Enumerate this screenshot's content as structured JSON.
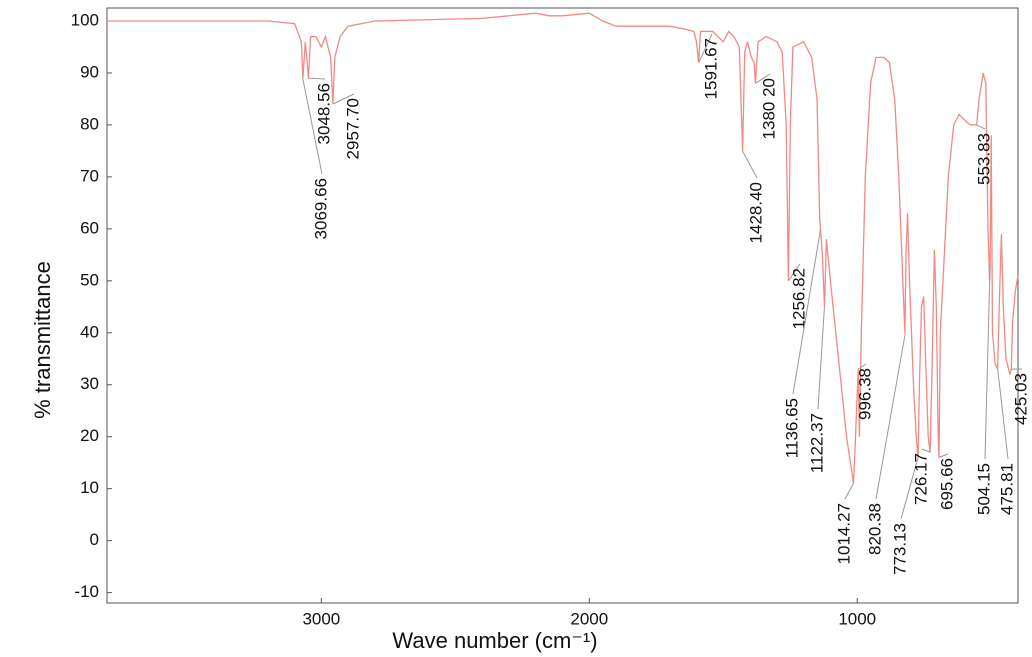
{
  "chart_data": {
    "type": "line",
    "xlabel": "Wave number (cm⁻¹)",
    "ylabel": "% transmittance",
    "color": "#f08a84",
    "xlim": [
      3800,
      400
    ],
    "xticks": [
      3000,
      2000,
      1000
    ],
    "ylim": [
      -12,
      102.5
    ],
    "yticks": [
      100,
      90,
      80,
      70,
      60,
      50,
      40,
      30,
      20,
      10,
      0,
      -10
    ],
    "x": [
      3800,
      3400,
      3200,
      3100,
      3075,
      3069,
      3060,
      3048,
      3040,
      3020,
      3000,
      2985,
      2965,
      2957,
      2950,
      2930,
      2900,
      2800,
      2400,
      2200,
      2150,
      2100,
      2000,
      1950,
      1900,
      1850,
      1800,
      1700,
      1650,
      1610,
      1600,
      1592,
      1585,
      1540,
      1500,
      1480,
      1460,
      1440,
      1428,
      1420,
      1410,
      1395,
      1385,
      1380,
      1370,
      1340,
      1300,
      1280,
      1265,
      1257,
      1250,
      1240,
      1200,
      1170,
      1150,
      1140,
      1137,
      1130,
      1122,
      1115,
      1100,
      1080,
      1060,
      1040,
      1025,
      1014,
      1008,
      1000,
      996,
      992,
      985,
      970,
      950,
      930,
      900,
      880,
      860,
      845,
      830,
      822,
      818,
      812,
      805,
      790,
      780,
      773,
      768,
      760,
      752,
      745,
      735,
      728,
      722,
      712,
      705,
      698,
      695,
      690,
      680,
      660,
      640,
      620,
      600,
      580,
      560,
      554,
      545,
      530,
      520,
      512,
      506,
      504,
      500,
      495,
      485,
      476,
      470,
      462,
      455,
      445,
      430,
      425,
      420,
      410,
      400
    ],
    "values": [
      100,
      100,
      100,
      99.5,
      96,
      89,
      96,
      89,
      97,
      97,
      95,
      97,
      93,
      84,
      93,
      97,
      99,
      100,
      100.5,
      101.5,
      101,
      101,
      101.5,
      100,
      99,
      99,
      99,
      99,
      98.5,
      98,
      96,
      92,
      98,
      98,
      96,
      98,
      97,
      95,
      75,
      94,
      96,
      93,
      92,
      88,
      96,
      97,
      96,
      94,
      80,
      50,
      80,
      95,
      96,
      93,
      85,
      62,
      60,
      55,
      45,
      58,
      50,
      40,
      30,
      20,
      15,
      11,
      18,
      28,
      33,
      20,
      40,
      70,
      88,
      93,
      93,
      92,
      85,
      70,
      50,
      40,
      55,
      63,
      50,
      30,
      20,
      16,
      30,
      45,
      47,
      35,
      20,
      17,
      30,
      56,
      45,
      20,
      16,
      40,
      50,
      70,
      80,
      82,
      81,
      80,
      80,
      80,
      85,
      90,
      88,
      60,
      50,
      53,
      78,
      40,
      34,
      33,
      45,
      59,
      45,
      35,
      32,
      33,
      42,
      48,
      51
    ],
    "peaks": [
      {
        "x": 3069.66,
        "y": 89,
        "label": "3069.66"
      },
      {
        "x": 3048.56,
        "y": 89,
        "label": "3048.56"
      },
      {
        "x": 2957.7,
        "y": 84,
        "label": "2957.70"
      },
      {
        "x": 1591.67,
        "y": 92,
        "label": "1591.67"
      },
      {
        "x": 1428.4,
        "y": 75,
        "label": "1428.40"
      },
      {
        "x": 1380.2,
        "y": 88,
        "label": "1380 20"
      },
      {
        "x": 1256.82,
        "y": 50,
        "label": "1256.82"
      },
      {
        "x": 1136.65,
        "y": 60,
        "label": "1136.65"
      },
      {
        "x": 1122.37,
        "y": 45,
        "label": "1122.37"
      },
      {
        "x": 1014.27,
        "y": 11,
        "label": "1014.27"
      },
      {
        "x": 996.38,
        "y": 33,
        "label": "996.38"
      },
      {
        "x": 820.38,
        "y": 40,
        "label": "820.38"
      },
      {
        "x": 773.13,
        "y": 16,
        "label": "773.13"
      },
      {
        "x": 726.17,
        "y": 17,
        "label": "726.17"
      },
      {
        "x": 695.66,
        "y": 16,
        "label": "695.66"
      },
      {
        "x": 553.83,
        "y": 80,
        "label": "553.83"
      },
      {
        "x": 504.15,
        "y": 53,
        "label": "504.15"
      },
      {
        "x": 475.81,
        "y": 33,
        "label": "475.81"
      },
      {
        "x": 425.03,
        "y": 33,
        "label": "425.03"
      }
    ]
  }
}
